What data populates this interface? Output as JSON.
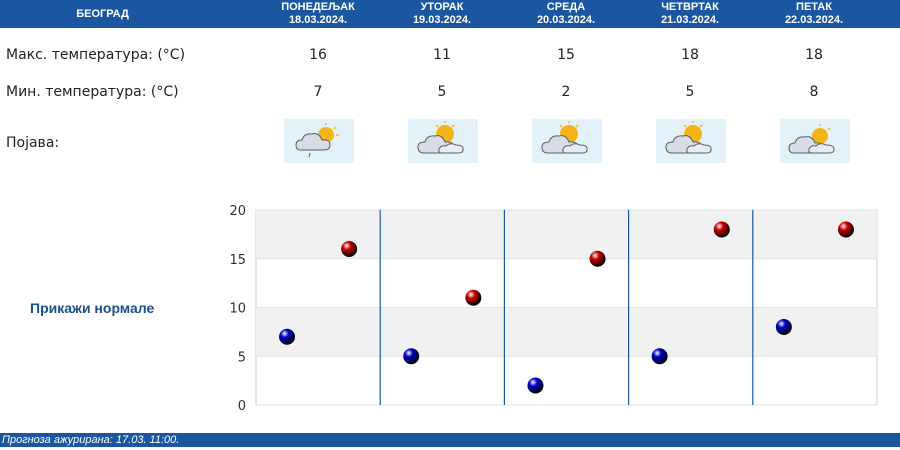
{
  "header": {
    "city": "БЕОГРАД",
    "days": [
      {
        "name": "ПОНЕДЕЉАК",
        "date": "18.03.2024."
      },
      {
        "name": "УТОРАК",
        "date": "19.03.2024."
      },
      {
        "name": "СРЕДА",
        "date": "20.03.2024."
      },
      {
        "name": "ЧЕТВРТАК",
        "date": "21.03.2024."
      },
      {
        "name": "ПЕТАК",
        "date": "22.03.2024."
      }
    ]
  },
  "rows": {
    "max_label": "Макс. температура: (°C)",
    "min_label": "Мин. температура: (°C)",
    "phenomenon_label": "Појава:",
    "max_values": [
      "16",
      "11",
      "15",
      "18",
      "18"
    ],
    "min_values": [
      "7",
      "5",
      "2",
      "5",
      "8"
    ],
    "icons": [
      "partly-cloudy-drizzle-icon",
      "partly-cloudy-icon",
      "partly-cloudy-icon",
      "partly-cloudy-icon",
      "partly-cloudy-icon"
    ]
  },
  "normals_link": "Прикажи нормале",
  "footer": "Прогноза ажурирана:  17.03.  11:00.",
  "colors": {
    "header_bg": "#1a57a0",
    "max_marker": "#cc0000",
    "min_marker": "#0000cc",
    "band_shade": "#f1f1f1"
  },
  "chart_data": {
    "type": "scatter",
    "categories": [
      "18.03.2024.",
      "19.03.2024.",
      "20.03.2024.",
      "21.03.2024.",
      "22.03.2024."
    ],
    "series": [
      {
        "values": [
          7,
          5,
          2,
          5,
          8
        ],
        "color": "#0000cc"
      },
      {
        "values": [
          16,
          11,
          15,
          18,
          18
        ],
        "color": "#cc0000"
      }
    ],
    "ylim": [
      0,
      20
    ],
    "yticks": [
      "0",
      "5",
      "10",
      "15",
      "20"
    ],
    "grid": true
  }
}
